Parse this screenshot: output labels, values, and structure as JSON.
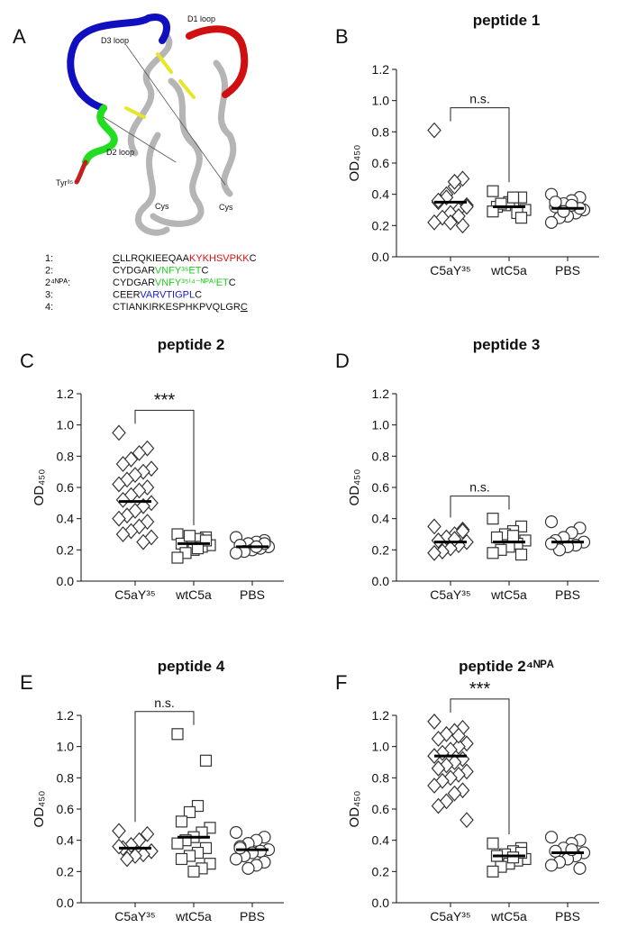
{
  "panel_a": {
    "letter": "A",
    "labels": [
      "D3 loop",
      "D1 loop",
      "D2 loop",
      "Tyr³⁵",
      "Cys",
      "Cys"
    ],
    "sequences": [
      {
        "label": "1:",
        "parts": [
          {
            "text": "C",
            "color": "#111111",
            "underline": true
          },
          {
            "text": "LLRQKIEEQAA",
            "color": "#111111"
          },
          {
            "text": "KYKHSVPKK",
            "color": "#e01010"
          },
          {
            "text": "C",
            "color": "#111111"
          }
        ]
      },
      {
        "label": "2:",
        "parts": [
          {
            "text": "CYDGAR",
            "color": "#111111"
          },
          {
            "text": "VNFY³⁵ET",
            "color": "#22cc22"
          },
          {
            "text": "C",
            "color": "#111111"
          }
        ]
      },
      {
        "label": "2⁴ᴺᴾᴬ:",
        "parts": [
          {
            "text": "CYDGAR",
            "color": "#111111"
          },
          {
            "text": "VNFY³⁵⁽⁴⁻ᴺᴾᴬ⁾ET",
            "color": "#22cc22"
          },
          {
            "text": "C",
            "color": "#111111"
          }
        ]
      },
      {
        "label": "3:",
        "parts": [
          {
            "text": "CEER",
            "color": "#111111"
          },
          {
            "text": "VARVTIGPL",
            "color": "#1a1acc"
          },
          {
            "text": "C",
            "color": "#111111"
          }
        ]
      },
      {
        "label": "4:",
        "parts": [
          {
            "text": "CTIANKIRKESPHKPVQLGR",
            "color": "#111111"
          },
          {
            "text": "C",
            "color": "#111111",
            "underline": true
          }
        ]
      }
    ]
  },
  "chart_data": [
    {
      "type": "dotplot",
      "panel": "B",
      "title": "peptide 1",
      "y_label": "OD₄₅₀",
      "categories": [
        "C5aY³⁵",
        "wtC5a",
        "PBS"
      ],
      "groups": [
        {
          "marker": "diamond",
          "values": [
            0.81,
            0.5,
            0.45,
            0.4,
            0.35,
            0.33,
            0.3,
            0.28,
            0.25,
            0.22,
            0.2,
            0.48,
            0.38,
            0.36,
            0.32,
            0.26,
            0.22
          ],
          "mean": 0.35
        },
        {
          "marker": "square",
          "values": [
            0.42,
            0.38,
            0.36,
            0.33,
            0.32,
            0.3,
            0.28,
            0.35,
            0.34,
            0.29,
            0.25,
            0.38
          ],
          "mean": 0.32
        },
        {
          "marker": "circle",
          "values": [
            0.4,
            0.38,
            0.36,
            0.34,
            0.32,
            0.3,
            0.28,
            0.26,
            0.25,
            0.22,
            0.31,
            0.33,
            0.29,
            0.35
          ],
          "mean": 0.31
        }
      ],
      "bracket": {
        "label": "n.s.",
        "groups": [
          0,
          1
        ]
      },
      "ylim": [
        0,
        1.2
      ],
      "yticks": [
        {
          "value": 0,
          "label": "0.0"
        },
        {
          "value": 0.2,
          "label": "0.2"
        },
        {
          "value": 0.4,
          "label": "0.4"
        },
        {
          "value": 0.6,
          "label": "0.6"
        },
        {
          "value": 0.8,
          "label": "0.8"
        },
        {
          "value": 1,
          "label": "1.0"
        },
        {
          "value": 1.2,
          "label": "1.2"
        }
      ]
    },
    {
      "type": "dotplot",
      "panel": "C",
      "title": "peptide 2",
      "y_label": "OD₄₅₀",
      "categories": [
        "C5aY³⁵",
        "wtC5a",
        "PBS"
      ],
      "groups": [
        {
          "marker": "diamond",
          "values": [
            0.95,
            0.85,
            0.82,
            0.78,
            0.75,
            0.72,
            0.7,
            0.68,
            0.65,
            0.62,
            0.6,
            0.58,
            0.55,
            0.52,
            0.5,
            0.48,
            0.45,
            0.42,
            0.4,
            0.38,
            0.35,
            0.32,
            0.3,
            0.28,
            0.25
          ],
          "mean": 0.51
        },
        {
          "marker": "square",
          "values": [
            0.3,
            0.28,
            0.27,
            0.25,
            0.24,
            0.23,
            0.22,
            0.2,
            0.18,
            0.15,
            0.26,
            0.21,
            0.29
          ],
          "mean": 0.24
        },
        {
          "marker": "circle",
          "values": [
            0.28,
            0.26,
            0.25,
            0.24,
            0.23,
            0.22,
            0.21,
            0.2,
            0.19,
            0.18,
            0.24,
            0.22
          ],
          "mean": 0.22
        }
      ],
      "bracket": {
        "label": "***",
        "groups": [
          0,
          1
        ]
      },
      "ylim": [
        0,
        1.2
      ],
      "yticks": [
        {
          "value": 0,
          "label": "0.0"
        },
        {
          "value": 0.2,
          "label": "0.2"
        },
        {
          "value": 0.4,
          "label": "0.4"
        },
        {
          "value": 0.6,
          "label": "0.6"
        },
        {
          "value": 0.8,
          "label": "0.8"
        },
        {
          "value": 1,
          "label": "1.0"
        },
        {
          "value": 1.2,
          "label": "1.2"
        }
      ]
    },
    {
      "type": "dotplot",
      "panel": "D",
      "title": "peptide 3",
      "y_label": "OD₄₅₀",
      "categories": [
        "C5aY³⁵",
        "wtC5a",
        "PBS"
      ],
      "groups": [
        {
          "marker": "diamond",
          "values": [
            0.35,
            0.33,
            0.3,
            0.28,
            0.26,
            0.25,
            0.23,
            0.21,
            0.19,
            0.18,
            0.32,
            0.27
          ],
          "mean": 0.25
        },
        {
          "marker": "square",
          "values": [
            0.4,
            0.35,
            0.32,
            0.3,
            0.28,
            0.26,
            0.24,
            0.22,
            0.2,
            0.18,
            0.17,
            0.29
          ],
          "mean": 0.25
        },
        {
          "marker": "circle",
          "values": [
            0.38,
            0.34,
            0.31,
            0.28,
            0.26,
            0.25,
            0.23,
            0.22,
            0.2,
            0.24
          ],
          "mean": 0.25
        }
      ],
      "bracket": {
        "label": "n.s.",
        "groups": [
          0,
          1
        ]
      },
      "ylim": [
        0,
        1.2
      ],
      "yticks": [
        {
          "value": 0,
          "label": "0.0"
        },
        {
          "value": 0.2,
          "label": "0.2"
        },
        {
          "value": 0.4,
          "label": "0.4"
        },
        {
          "value": 0.6,
          "label": "0.6"
        },
        {
          "value": 0.8,
          "label": "0.8"
        },
        {
          "value": 1,
          "label": "1.0"
        },
        {
          "value": 1.2,
          "label": "1.2"
        }
      ]
    },
    {
      "type": "dotplot",
      "panel": "E",
      "title": "peptide 4",
      "y_label": "OD₄₅₀",
      "categories": [
        "C5aY³⁵",
        "wtC5a",
        "PBS"
      ],
      "groups": [
        {
          "marker": "diamond",
          "values": [
            0.46,
            0.44,
            0.4,
            0.37,
            0.35,
            0.33,
            0.31,
            0.3,
            0.28,
            0.36
          ],
          "mean": 0.35
        },
        {
          "marker": "square",
          "values": [
            1.08,
            0.91,
            0.62,
            0.58,
            0.52,
            0.48,
            0.45,
            0.42,
            0.4,
            0.38,
            0.35,
            0.32,
            0.3,
            0.28,
            0.25,
            0.22,
            0.2
          ],
          "mean": 0.42
        },
        {
          "marker": "circle",
          "values": [
            0.45,
            0.42,
            0.4,
            0.38,
            0.36,
            0.34,
            0.33,
            0.32,
            0.3,
            0.28,
            0.26,
            0.24,
            0.22,
            0.35
          ],
          "mean": 0.34
        }
      ],
      "bracket": {
        "label": "n.s.",
        "groups": [
          0,
          1
        ]
      },
      "ylim": [
        0,
        1.2
      ],
      "yticks": [
        {
          "value": 0,
          "label": "0.0"
        },
        {
          "value": 0.2,
          "label": "0.2"
        },
        {
          "value": 0.4,
          "label": "0.4"
        },
        {
          "value": 0.6,
          "label": "0.6"
        },
        {
          "value": 0.8,
          "label": "0.8"
        },
        {
          "value": 1,
          "label": "1.0"
        },
        {
          "value": 1.2,
          "label": "1.2"
        }
      ]
    },
    {
      "type": "dotplot",
      "panel": "F",
      "title": "peptide 2⁴ᴺᴾᴬ",
      "y_label": "OD₄₅₀",
      "categories": [
        "C5aY³⁵",
        "wtC5a",
        "PBS"
      ],
      "groups": [
        {
          "marker": "diamond",
          "values": [
            1.16,
            1.12,
            1.1,
            1.08,
            1.05,
            1.02,
            1,
            0.98,
            0.96,
            0.94,
            0.92,
            0.9,
            0.88,
            0.86,
            0.84,
            0.82,
            0.8,
            0.78,
            0.75,
            0.72,
            0.7,
            0.65,
            0.62,
            0.53,
            1.07
          ],
          "mean": 0.94
        },
        {
          "marker": "square",
          "values": [
            0.38,
            0.35,
            0.33,
            0.31,
            0.3,
            0.28,
            0.27,
            0.25,
            0.23,
            0.2,
            0.32,
            0.29
          ],
          "mean": 0.3
        },
        {
          "marker": "circle",
          "values": [
            0.42,
            0.4,
            0.38,
            0.35,
            0.33,
            0.32,
            0.3,
            0.28,
            0.26,
            0.24,
            0.22,
            0.34
          ],
          "mean": 0.32
        }
      ],
      "bracket": {
        "label": "***",
        "groups": [
          0,
          1
        ]
      },
      "ylim": [
        0,
        1.2
      ],
      "yticks": [
        {
          "value": 0,
          "label": "0.0"
        },
        {
          "value": 0.2,
          "label": "0.2"
        },
        {
          "value": 0.4,
          "label": "0.4"
        },
        {
          "value": 0.6,
          "label": "0.6"
        },
        {
          "value": 0.8,
          "label": "0.8"
        },
        {
          "value": 1,
          "label": "1.0"
        },
        {
          "value": 1.2,
          "label": "1.2"
        }
      ]
    }
  ]
}
